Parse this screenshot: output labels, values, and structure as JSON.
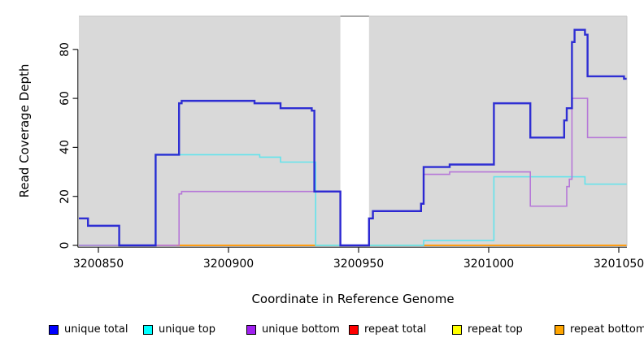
{
  "figure": {
    "type": "R-style step coverage plot",
    "page_bg": "#FFFFFF"
  },
  "colors": {
    "plot_bg": "#D9D9D9",
    "mask_band": "#FFFFFF",
    "axis": "#1A1A1A",
    "border_light": "#C9C9C9",
    "border_dark": "#8F8F8F",
    "tick_text": "#000000"
  },
  "legend": [
    {
      "label": "unique total",
      "swatch_color": "#0000FF"
    },
    {
      "label": "unique top",
      "swatch_color": "#00FFFF"
    },
    {
      "label": "unique bottom",
      "swatch_color": "#A020F0"
    },
    {
      "label": "repeat total",
      "swatch_color": "#FF0000"
    },
    {
      "label": "repeat top",
      "swatch_color": "#FFFF00"
    },
    {
      "label": "repeat bottom",
      "swatch_color": "#FFA500"
    }
  ],
  "chart_data": {
    "type": "line",
    "style": "step-after",
    "title": "",
    "xlabel": "Coordinate in Reference Genome",
    "ylabel": "Read Coverage Depth",
    "x_ticks": [
      3200850,
      3200900,
      3200950,
      3201000,
      3201050
    ],
    "y_ticks": [
      0,
      20,
      40,
      60,
      80
    ],
    "xlim": [
      3200842.5,
      3201053
    ],
    "ylim": [
      0,
      93.5
    ],
    "grid": "off",
    "legend_position": "bottom-horizontal",
    "masked_region": {
      "x_start": 3200943,
      "x_end": 3200954,
      "color": "#FFFFFF"
    },
    "series": [
      {
        "name": "unique top",
        "line_color": "#63E3EC",
        "line_width": 1.6,
        "opacity": 1,
        "points": [
          [
            3200842.5,
            0
          ],
          [
            3200872,
            37
          ],
          [
            3200912,
            36
          ],
          [
            3200920,
            34
          ],
          [
            3200933.5,
            0
          ],
          [
            3200975,
            2
          ],
          [
            3201002,
            28
          ],
          [
            3201037,
            25
          ],
          [
            3201053,
            25
          ]
        ]
      },
      {
        "name": "unique bottom",
        "line_color": "#B678D8",
        "line_width": 1.6,
        "opacity": 1,
        "points": [
          [
            3200842.5,
            0
          ],
          [
            3200881,
            21
          ],
          [
            3200882,
            22
          ],
          [
            3200943,
            0
          ],
          [
            3200954,
            11
          ],
          [
            3200955.5,
            14
          ],
          [
            3200974,
            17
          ],
          [
            3200975,
            29
          ],
          [
            3200985,
            30
          ],
          [
            3201016,
            16
          ],
          [
            3201030,
            24
          ],
          [
            3201031,
            27
          ],
          [
            3201032,
            60
          ],
          [
            3201038,
            44
          ],
          [
            3201053,
            44
          ]
        ]
      },
      {
        "name": "unique total",
        "line_color": "#1C1CD2",
        "line_width": 2.4,
        "opacity": 0.9,
        "points": [
          [
            3200842.5,
            11
          ],
          [
            3200846,
            8
          ],
          [
            3200858,
            0
          ],
          [
            3200872,
            37
          ],
          [
            3200881,
            58
          ],
          [
            3200882,
            59
          ],
          [
            3200910,
            58
          ],
          [
            3200920,
            56
          ],
          [
            3200932,
            55
          ],
          [
            3200933,
            22
          ],
          [
            3200943,
            0
          ],
          [
            3200954,
            11
          ],
          [
            3200955.5,
            14
          ],
          [
            3200974,
            17
          ],
          [
            3200975,
            32
          ],
          [
            3200985,
            33
          ],
          [
            3201002,
            58
          ],
          [
            3201016,
            44
          ],
          [
            3201029,
            51
          ],
          [
            3201030,
            56
          ],
          [
            3201032,
            83
          ],
          [
            3201033,
            88
          ],
          [
            3201037,
            86
          ],
          [
            3201038,
            69
          ],
          [
            3201052,
            68
          ],
          [
            3201053,
            68
          ]
        ]
      },
      {
        "name": "repeat total",
        "line_color": "#CC5570",
        "line_width": 1.6,
        "opacity": 1,
        "render": "baseline",
        "points": [
          [
            3200842.5,
            0
          ],
          [
            3201053,
            0
          ]
        ]
      },
      {
        "name": "repeat top",
        "line_color": "#8FCC96",
        "line_width": 1.6,
        "opacity": 1,
        "render": "baseline",
        "points": [
          [
            3200842.5,
            0
          ],
          [
            3201053,
            0
          ]
        ]
      },
      {
        "name": "repeat bottom",
        "line_color": "#FF9D14",
        "line_width": 2,
        "opacity": 1,
        "render": "baseline",
        "points": [
          [
            3200842.5,
            0
          ],
          [
            3201053,
            0
          ]
        ]
      }
    ],
    "baseline_render_segments": [
      {
        "color": "#8FCC96",
        "from": 3200842.5,
        "to": 3200872,
        "width": 1.6
      },
      {
        "color": "#CC5570",
        "from": 3200872,
        "to": 3200880,
        "width": 1.6
      },
      {
        "color": "#FF9D14",
        "from": 3200880,
        "to": 3200933.5,
        "width": 2
      },
      {
        "color": "#8FCC96",
        "from": 3200933.5,
        "to": 3200975,
        "width": 1.6
      },
      {
        "color": "#FF9D14",
        "from": 3200975,
        "to": 3201053,
        "width": 2
      }
    ]
  },
  "legend_layout": {
    "square_x": [
      60,
      176,
      303,
      429,
      556,
      682
    ]
  }
}
